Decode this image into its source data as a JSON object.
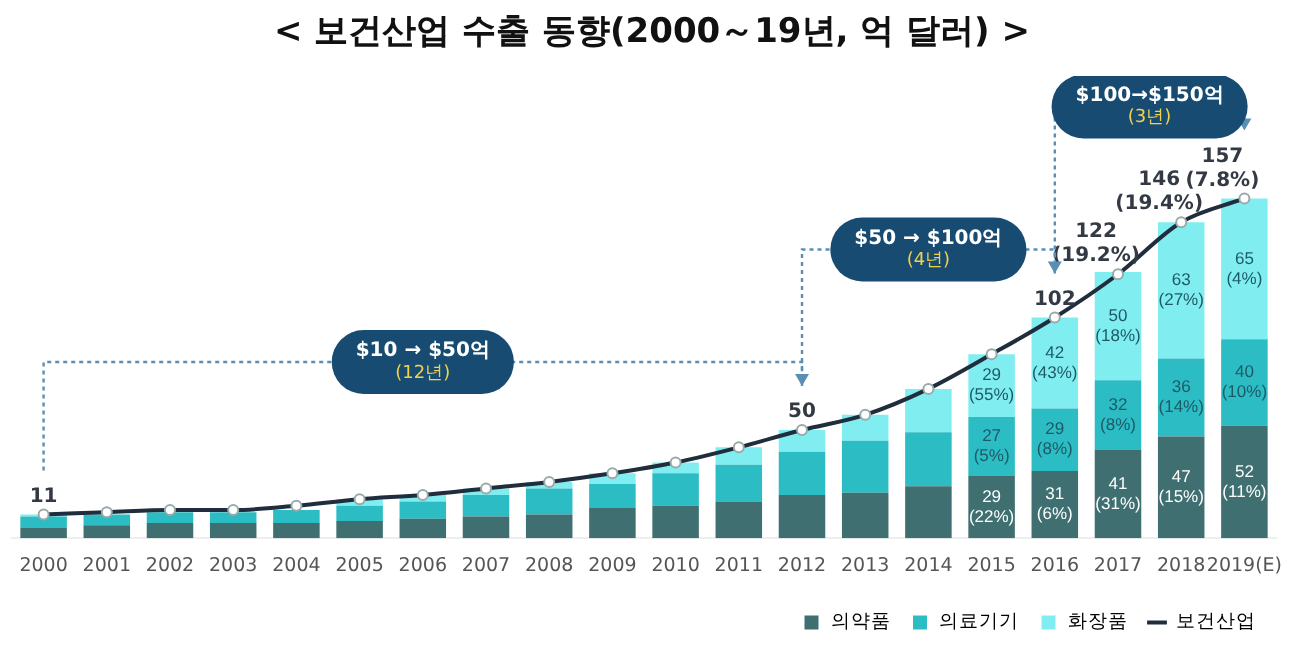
{
  "chart_data": {
    "type": "bar",
    "stacked": true,
    "title": "< 보건산업 수출 동향(2000～19년, 억 달러) >",
    "categories": [
      "2000",
      "2001",
      "2002",
      "2003",
      "2004",
      "2005",
      "2006",
      "2007",
      "2008",
      "2009",
      "2010",
      "2011",
      "2012",
      "2013",
      "2014",
      "2015",
      "2016",
      "2017",
      "2018",
      "2019(E)"
    ],
    "series": [
      {
        "name": "의약품",
        "color": "#3f6f70",
        "values": [
          5,
          6,
          7,
          7,
          7,
          8,
          9,
          10,
          11,
          14,
          15,
          17,
          20,
          21,
          24,
          29,
          31,
          41,
          47,
          52
        ],
        "value_labels": [
          null,
          null,
          null,
          null,
          null,
          null,
          null,
          null,
          null,
          null,
          null,
          null,
          null,
          null,
          null,
          "29\n(22%)",
          "31\n(6%)",
          "41\n(31%)",
          "47\n(15%)",
          "52\n(11%)"
        ]
      },
      {
        "name": "의료기기",
        "color": "#2cbcc4",
        "values": [
          5,
          5,
          5,
          5,
          6,
          7,
          8,
          10,
          12,
          11,
          15,
          17,
          20,
          24,
          25,
          27,
          29,
          32,
          36,
          40
        ],
        "value_labels": [
          null,
          null,
          null,
          null,
          null,
          null,
          null,
          null,
          null,
          null,
          null,
          null,
          null,
          null,
          null,
          "27\n(5%)",
          "29\n(8%)",
          "32\n(8%)",
          "36\n(14%)",
          "40\n(10%)"
        ]
      },
      {
        "name": "화장품",
        "color": "#80eef0",
        "values": [
          1,
          null,
          null,
          null,
          null,
          3,
          3,
          3,
          3,
          5,
          5,
          8,
          10,
          12,
          20,
          29,
          42,
          50,
          63,
          65
        ],
        "value_labels": [
          null,
          null,
          null,
          null,
          null,
          null,
          null,
          null,
          null,
          null,
          null,
          null,
          null,
          null,
          null,
          "29\n(55%)",
          "42\n(43%)",
          "50\n(18%)",
          "63\n(27%)",
          "65\n(4%)"
        ]
      },
      {
        "name": "보건산업",
        "type": "line",
        "color": "#1f2d3d",
        "values": [
          11,
          12,
          13,
          13,
          15,
          18,
          20,
          23,
          26,
          30,
          35,
          42,
          50,
          57,
          69,
          85,
          102,
          122,
          146,
          157
        ],
        "value_labels": [
          "11",
          null,
          null,
          null,
          null,
          null,
          null,
          null,
          null,
          null,
          null,
          null,
          "50",
          null,
          null,
          null,
          "102",
          "122\n(19.2%)",
          "146\n(19.4%)",
          "157\n(7.8%)"
        ]
      }
    ],
    "grid": false,
    "legend": "bottom right",
    "marker": "circle",
    "line_style": "solid",
    "annotations": [
      "$10 → $50억\n(12년)",
      "$50 → $100억\n(4년)",
      "$100→$150억\n(3년)"
    ]
  }
}
